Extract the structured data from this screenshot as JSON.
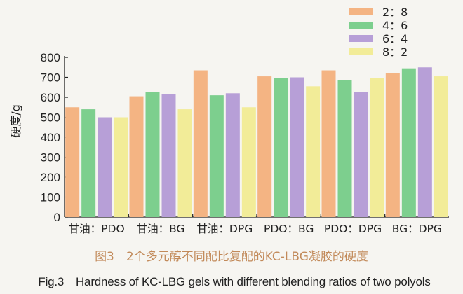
{
  "chart_data": {
    "type": "bar",
    "ylabel": "硬度/g",
    "xlabel": "",
    "ylim": [
      0,
      800
    ],
    "yticks": [
      0,
      100,
      200,
      300,
      400,
      500,
      600,
      700,
      800
    ],
    "categories": [
      "甘油：PDO",
      "甘油：BG",
      "甘油：DPG",
      "PDO：BG",
      "PDO：DPG",
      "BG：DPG"
    ],
    "series": [
      {
        "name": "2：8",
        "color": "#f4b483",
        "values": [
          550,
          605,
          735,
          705,
          735,
          720
        ]
      },
      {
        "name": "4：6",
        "color": "#7dcf8e",
        "values": [
          540,
          625,
          610,
          695,
          685,
          745
        ]
      },
      {
        "name": "6：4",
        "color": "#b79fd7",
        "values": [
          500,
          615,
          620,
          700,
          625,
          750
        ]
      },
      {
        "name": "8：2",
        "color": "#f2ec98",
        "values": [
          500,
          540,
          550,
          655,
          695,
          705
        ]
      }
    ],
    "legend_position": "top-right"
  },
  "caption_cn": "图3　2个多元醇不同配比复配的KC-LBG凝胶的硬度",
  "caption_en": "Fig.3　Hardness of KC-LBG gels with different blending ratios of two polyols"
}
